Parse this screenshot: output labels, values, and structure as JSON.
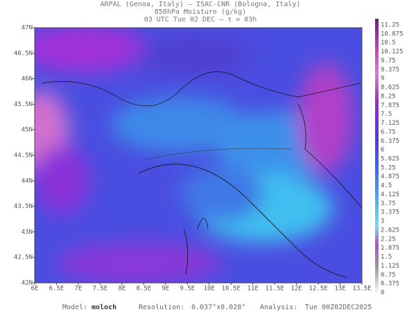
{
  "header": {
    "lines": [
      "ARPAL (Genoa, Italy)  –  ISAC-CNR (Bologna, Italy)",
      "850hPa Moisture (g/kg)",
      "03 UTC Tue 02 DEC  –  τ = 03h"
    ]
  },
  "map": {
    "x_labels": [
      "6E",
      "6.5E",
      "7E",
      "7.5E",
      "8E",
      "8.5E",
      "9E",
      "9.5E",
      "10E",
      "10.5E",
      "11E",
      "11.5E",
      "12E",
      "12.5E",
      "13E",
      "13.5E"
    ],
    "y_labels": [
      "47N",
      "46.5N",
      "46N",
      "45.5N",
      "45N",
      "44.5N",
      "44N",
      "43.5N",
      "43N",
      "42.5N",
      "42N"
    ]
  },
  "colorbar": {
    "labels": [
      "11.25",
      "10.875",
      "10.5",
      "10.125",
      "9.75",
      "9.375",
      "9",
      "8.625",
      "8.25",
      "7.875",
      "7.5",
      "7.125",
      "6.75",
      "6.375",
      "6",
      "5.625",
      "5.25",
      "4.875",
      "4.5",
      "4.125",
      "3.75",
      "3.375",
      "3",
      "2.625",
      "2.25",
      "1.875",
      "1.5",
      "1.125",
      "0.75",
      "0.375",
      "0"
    ]
  },
  "footer": {
    "model_label": "Model:",
    "model": "moloch",
    "resolution_label": "Resolution:",
    "resolution": "0.037°x0.028°",
    "analysis_label": "Analysis:",
    "analysis": "Tue 00Z02DEC2025"
  }
}
